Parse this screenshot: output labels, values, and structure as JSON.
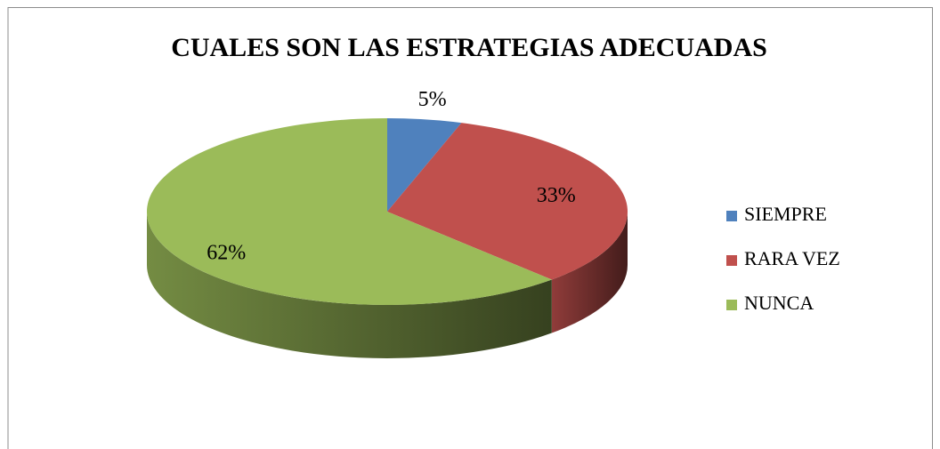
{
  "chart_data": {
    "type": "pie",
    "title": "CUALES SON LAS ESTRATEGIAS ADECUADAS",
    "categories": [
      "SIEMPRE",
      "RARA VEZ",
      "NUNCA"
    ],
    "values": [
      5,
      33,
      62
    ],
    "value_labels": [
      "5%",
      "33%",
      "62%"
    ],
    "colors": [
      "#4f81bd",
      "#c0504d",
      "#9bbb59"
    ],
    "legend": "right"
  }
}
